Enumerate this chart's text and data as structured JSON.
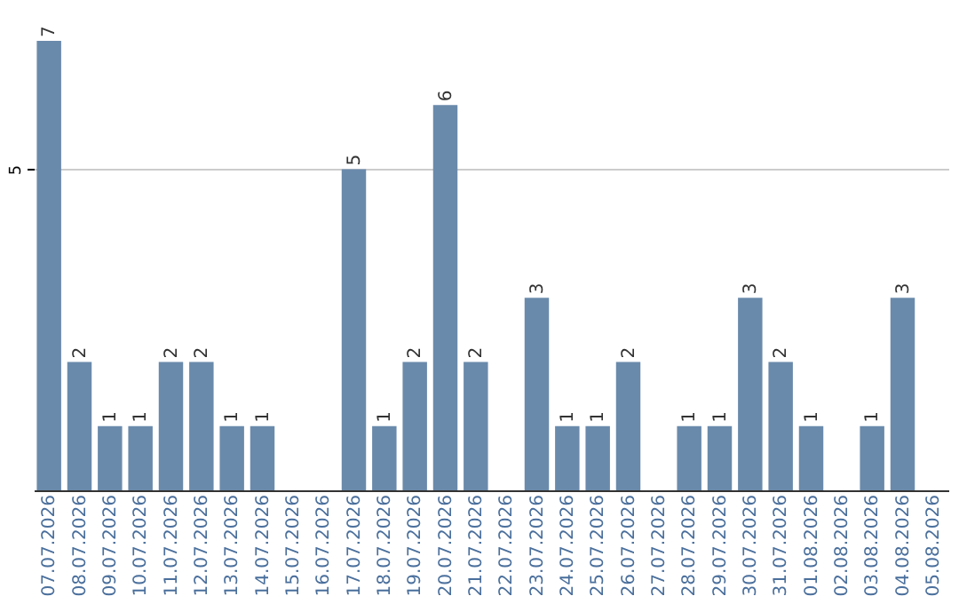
{
  "chart_data": {
    "type": "bar",
    "categories": [
      "07.07.2026",
      "08.07.2026",
      "09.07.2026",
      "10.07.2026",
      "11.07.2026",
      "12.07.2026",
      "13.07.2026",
      "14.07.2026",
      "15.07.2026",
      "16.07.2026",
      "17.07.2026",
      "18.07.2026",
      "19.07.2026",
      "20.07.2026",
      "21.07.2026",
      "22.07.2026",
      "23.07.2026",
      "24.07.2026",
      "25.07.2026",
      "26.07.2026",
      "27.07.2026",
      "28.07.2026",
      "29.07.2026",
      "30.07.2026",
      "31.07.2026",
      "01.08.2026",
      "02.08.2026",
      "03.08.2026",
      "04.08.2026",
      "05.08.2026"
    ],
    "values": [
      7,
      2,
      1,
      1,
      2,
      2,
      1,
      1,
      0,
      0,
      5,
      1,
      2,
      6,
      2,
      0,
      3,
      1,
      1,
      2,
      0,
      1,
      1,
      3,
      2,
      1,
      0,
      1,
      3,
      0
    ],
    "value_labels": [
      "7",
      "2",
      "1",
      "1",
      "2",
      "2",
      "1",
      "1",
      null,
      null,
      "5",
      "1",
      "2",
      "6",
      "2",
      null,
      "3",
      "1",
      "1",
      "2",
      null,
      "1",
      "1",
      "3",
      "2",
      "1",
      null,
      "1",
      "3",
      null
    ],
    "color": "#6a8aab",
    "ylim": [
      0,
      7
    ],
    "yticks": [
      5
    ],
    "grid": "y"
  }
}
